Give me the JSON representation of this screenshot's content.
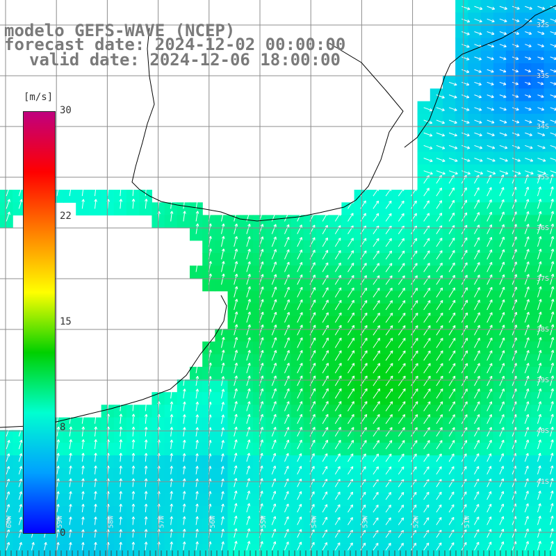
{
  "title": {
    "line1": "modelo GEFS-WAVE (NCEP)",
    "line2": "forecast date: 2024-12-02 00:00:00",
    "line3": "valid date: 2024-12-06 18:00:00"
  },
  "colorbar": {
    "unit": "[m/s]",
    "ticks": [
      "30",
      "22",
      "15",
      "8",
      "0"
    ],
    "stops": [
      "#c0007f",
      "#ff0000",
      "#ff8000",
      "#ffff00",
      "#00d000",
      "#00ffd0",
      "#00a0ff",
      "#0000ff"
    ]
  },
  "grid": {
    "lon_labels": [
      "60W",
      "59W",
      "58W",
      "57W",
      "56W",
      "55W",
      "54W",
      "53W",
      "52W",
      "51W"
    ],
    "lat_labels": [
      "32S",
      "33S",
      "34S",
      "35S",
      "36S",
      "37S",
      "38S",
      "39S",
      "40S",
      "41S"
    ]
  },
  "colors": {
    "land": "#ffffff",
    "coast": "#000000",
    "gridline": "#8c8c8c",
    "arrow": "#ffffff",
    "title_text": "#7a7a7a"
  }
}
